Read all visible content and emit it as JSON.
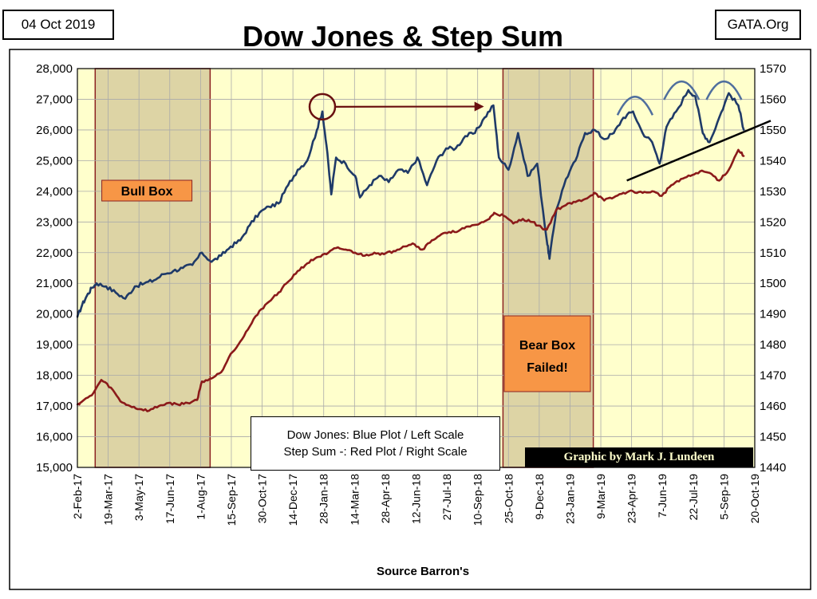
{
  "header": {
    "date_label": "04 Oct 2019",
    "site_label": "GATA.Org"
  },
  "legend": {
    "line1": "Dow Jones: Blue Plot / Left Scale",
    "line2": "Step Sum -: Red Plot / Right Scale"
  },
  "credit": "Graphic by Mark J. Lundeen",
  "colors": {
    "plot_background": "#ffffcc",
    "box_shade": "#ddd4a5",
    "box_border": "#8b2121",
    "dow_line": "#1f3a68",
    "stepsum_line": "#8b1a1a",
    "annotation_arrow": "#6a1010",
    "callout_fill": "#f79646",
    "credit_background": "#000000",
    "credit_text": "#ffffcc"
  },
  "chart_data": {
    "type": "line",
    "title": "Dow Jones & Step Sum",
    "xlabel": "Source Barron's",
    "ylabel_left": "",
    "ylabel_right": "",
    "x_tick_labels": [
      "2-Feb-17",
      "19-Mar-17",
      "3-May-17",
      "17-Jun-17",
      "1-Aug-17",
      "15-Sep-17",
      "30-Oct-17",
      "14-Dec-17",
      "28-Jan-18",
      "14-Mar-18",
      "28-Apr-18",
      "12-Jun-18",
      "27-Jul-18",
      "10-Sep-18",
      "25-Oct-18",
      "9-Dec-18",
      "23-Jan-19",
      "9-Mar-19",
      "23-Apr-19",
      "7-Jun-19",
      "22-Jul-19",
      "5-Sep-19",
      "20-Oct-19"
    ],
    "x_range": [
      "2-Feb-17",
      "20-Oct-19"
    ],
    "y_left": {
      "min": 15000,
      "max": 28000,
      "step": 1000,
      "tick_labels": [
        "15,000",
        "16,000",
        "17,000",
        "18,000",
        "19,000",
        "20,000",
        "21,000",
        "22,000",
        "23,000",
        "24,000",
        "25,000",
        "26,000",
        "27,000",
        "28,000"
      ]
    },
    "y_right": {
      "min": 1440,
      "max": 1570,
      "step": 10,
      "tick_labels": [
        "1440",
        "1450",
        "1460",
        "1470",
        "1480",
        "1490",
        "1500",
        "1510",
        "1520",
        "1530",
        "1540",
        "1550",
        "1560",
        "1570"
      ]
    },
    "grid": true,
    "legend_position": "bottom-center",
    "series": [
      {
        "name": "Dow Jones",
        "axis": "left",
        "x": [
          "2-Feb-17",
          "9-Feb-17",
          "16-Feb-17",
          "23-Feb-17",
          "2-Mar-17",
          "16-Mar-17",
          "30-Mar-17",
          "13-Apr-17",
          "27-Apr-17",
          "11-May-17",
          "25-May-17",
          "8-Jun-17",
          "22-Jun-17",
          "6-Jul-17",
          "20-Jul-17",
          "3-Aug-17",
          "17-Aug-17",
          "31-Aug-17",
          "14-Sep-17",
          "28-Sep-17",
          "12-Oct-17",
          "26-Oct-17",
          "9-Nov-17",
          "23-Nov-17",
          "7-Dec-17",
          "21-Dec-17",
          "4-Jan-18",
          "18-Jan-18",
          "26-Jan-18",
          "1-Feb-18",
          "8-Feb-18",
          "15-Feb-18",
          "1-Mar-18",
          "15-Mar-18",
          "22-Mar-18",
          "5-Apr-18",
          "19-Apr-18",
          "3-May-18",
          "17-May-18",
          "31-May-18",
          "14-Jun-18",
          "28-Jun-18",
          "12-Jul-18",
          "26-Jul-18",
          "9-Aug-18",
          "23-Aug-18",
          "6-Sep-18",
          "20-Sep-18",
          "3-Oct-18",
          "11-Oct-18",
          "25-Oct-18",
          "8-Nov-18",
          "22-Nov-18",
          "6-Dec-18",
          "20-Dec-18",
          "24-Dec-18",
          "3-Jan-19",
          "17-Jan-19",
          "31-Jan-19",
          "14-Feb-19",
          "28-Feb-19",
          "14-Mar-19",
          "28-Mar-19",
          "11-Apr-19",
          "25-Apr-19",
          "9-May-19",
          "23-May-19",
          "3-Jun-19",
          "13-Jun-19",
          "27-Jun-19",
          "15-Jul-19",
          "25-Jul-19",
          "5-Aug-19",
          "15-Aug-19",
          "29-Aug-19",
          "12-Sep-19",
          "26-Sep-19",
          "4-Oct-19"
        ],
        "values": [
          19900,
          20300,
          20600,
          20850,
          21000,
          20900,
          20700,
          20500,
          20900,
          21000,
          21100,
          21300,
          21400,
          21500,
          21600,
          22000,
          21700,
          21900,
          22200,
          22400,
          22900,
          23300,
          23500,
          23600,
          24200,
          24700,
          25000,
          26000,
          26600,
          25500,
          23900,
          25100,
          24900,
          24500,
          23800,
          24200,
          24500,
          24300,
          24700,
          24600,
          25100,
          24200,
          25000,
          25400,
          25400,
          25800,
          25900,
          26400,
          26800,
          25100,
          24700,
          25900,
          24500,
          24900,
          22400,
          21800,
          23400,
          24400,
          25000,
          25900,
          26000,
          25700,
          25900,
          26400,
          26600,
          25900,
          25600,
          24900,
          26100,
          26600,
          27300,
          27100,
          25900,
          25600,
          26400,
          27200,
          26800,
          26000
        ]
      },
      {
        "name": "Step Sum",
        "axis": "right",
        "x": [
          "2-Feb-17",
          "9-Feb-17",
          "23-Feb-17",
          "9-Mar-17",
          "23-Mar-17",
          "6-Apr-17",
          "20-Apr-17",
          "4-May-17",
          "18-May-17",
          "1-Jun-17",
          "15-Jun-17",
          "29-Jun-17",
          "13-Jul-17",
          "27-Jul-17",
          "3-Aug-17",
          "17-Aug-17",
          "31-Aug-17",
          "14-Sep-17",
          "28-Sep-17",
          "12-Oct-17",
          "26-Oct-17",
          "9-Nov-17",
          "23-Nov-17",
          "7-Dec-17",
          "21-Dec-17",
          "4-Jan-18",
          "18-Jan-18",
          "1-Feb-18",
          "15-Feb-18",
          "1-Mar-18",
          "15-Mar-18",
          "29-Mar-18",
          "12-Apr-18",
          "26-Apr-18",
          "10-May-18",
          "24-May-18",
          "7-Jun-18",
          "21-Jun-18",
          "5-Jul-18",
          "19-Jul-18",
          "2-Aug-18",
          "16-Aug-18",
          "30-Aug-18",
          "13-Sep-18",
          "27-Sep-18",
          "4-Oct-18",
          "18-Oct-18",
          "1-Nov-18",
          "15-Nov-18",
          "29-Nov-18",
          "13-Dec-18",
          "20-Dec-18",
          "3-Jan-19",
          "17-Jan-19",
          "31-Jan-19",
          "14-Feb-19",
          "28-Feb-19",
          "14-Mar-19",
          "28-Mar-19",
          "11-Apr-19",
          "25-Apr-19",
          "9-May-19",
          "23-May-19",
          "6-Jun-19",
          "20-Jun-19",
          "4-Jul-19",
          "18-Jul-19",
          "1-Aug-19",
          "15-Aug-19",
          "29-Aug-19",
          "12-Sep-19",
          "26-Sep-19",
          "4-Oct-19"
        ],
        "values": [
          1460.5,
          1461.5,
          1463.5,
          1468.5,
          1466,
          1461.5,
          1460,
          1459,
          1458.5,
          1460,
          1461,
          1460.5,
          1461,
          1462,
          1468,
          1469,
          1471,
          1477,
          1481,
          1486,
          1491,
          1494,
          1497,
          1500.5,
          1504,
          1506.5,
          1508.5,
          1509.5,
          1511.5,
          1511,
          1510,
          1509,
          1510,
          1509.5,
          1510.5,
          1512,
          1513,
          1511,
          1514,
          1516,
          1516.5,
          1517.5,
          1518.5,
          1519.5,
          1521,
          1523,
          1522,
          1519.5,
          1521,
          1520,
          1518,
          1517.5,
          1524,
          1525.5,
          1526.5,
          1527.5,
          1529.5,
          1527,
          1528,
          1529.5,
          1530,
          1529.5,
          1530,
          1528.5,
          1532,
          1534,
          1535,
          1536.5,
          1536,
          1533.5,
          1537,
          1543.5,
          1541.5
        ]
      }
    ],
    "shaded_regions": [
      {
        "label": "Bull Box",
        "start": "28-Feb-17",
        "end": "15-Aug-17"
      },
      {
        "label": "Bear Box Failed!",
        "start": "17-Oct-18",
        "end": "26-Feb-19"
      }
    ],
    "annotations": [
      {
        "text": "Bull Box"
      },
      {
        "text": "Bear Box\nFailed!"
      }
    ]
  }
}
